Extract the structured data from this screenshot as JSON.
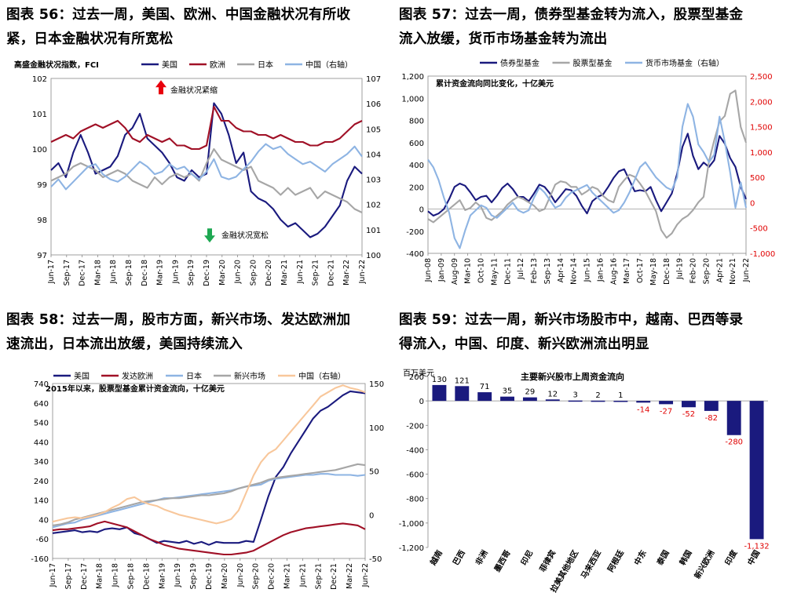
{
  "titles": {
    "t56": [
      "图表 56：过去一周，美国、欧洲、中国金融状况有所收",
      "紧，日本金融状况有所宽松"
    ],
    "t57": [
      "图表 57：过去一周，债券型基金转为流入，股票型基金",
      "流入放缓，货币市场基金转为流出"
    ],
    "t58": [
      "图表 58：过去一周，股市方面，新兴市场、发达欧洲加",
      "速流出，日本流出放缓，美国持续流入"
    ],
    "t59": [
      "图表 59：过去一周，新兴市场股市中，越南、巴西等录",
      "得流入，中国、印度、新兴欧洲流出明显"
    ]
  },
  "colors": {
    "navy": "#1a1a7e",
    "darkred": "#a01026",
    "gray": "#a6a6a6",
    "lightblue": "#8eb4e3",
    "orange": "#f8c79b",
    "red": "#e8000c",
    "green": "#1ea852",
    "bar": "#1a1a7e",
    "neg_label": "#e00000"
  },
  "x_ticks": {
    "c56": [
      "Jun-17",
      "Sep-17",
      "Dec-17",
      "Mar-18",
      "Jun-18",
      "Sep-18",
      "Dec-18",
      "Mar-19",
      "Jun-19",
      "Sep-19",
      "Dec-19",
      "Mar-20",
      "Jun-20",
      "Sep-20",
      "Dec-20",
      "Mar-21",
      "Jun-21",
      "Sep-21",
      "Dec-21",
      "Mar-22",
      "Jun-22"
    ],
    "c57": [
      "Jun-08",
      "Jan-09",
      "Aug-09",
      "Mar-10",
      "Oct-10",
      "May-11",
      "Dec-11",
      "Jul-12",
      "Feb-13",
      "Sep-13",
      "Apr-14",
      "Nov-14",
      "Jun-15",
      "Jan-16",
      "Aug-16",
      "Mar-17",
      "Oct-17",
      "May-18",
      "Dec-18",
      "Jul-19",
      "Feb-20",
      "Sep-20",
      "Apr-21",
      "Nov-21",
      "Jun-22"
    ],
    "c58": [
      "Jun-17",
      "Sep-17",
      "Dec-17",
      "Mar-18",
      "Jun-18",
      "Sep-18",
      "Dec-18",
      "Mar-19",
      "Jun-19",
      "Sep-19",
      "Dec-19",
      "Mar-20",
      "Jun-20",
      "Sep-20",
      "Dec-20",
      "Mar-21",
      "Jun-21",
      "Sep-21",
      "Dec-21",
      "Mar-22",
      "Jun-22"
    ]
  },
  "chart_data": [
    {
      "id": "c56",
      "type": "line",
      "subtitle": "高盛金融状况指数，FCI",
      "legend": [
        "美国",
        "欧洲",
        "日本",
        "中国（右轴）"
      ],
      "ylim": [
        97,
        102
      ],
      "y_ticks": [
        "97",
        "98",
        "99",
        "100",
        "101",
        "102"
      ],
      "y2lim": [
        100,
        107
      ],
      "y2_ticks": [
        "100",
        "101",
        "102",
        "103",
        "104",
        "105",
        "106",
        "107"
      ],
      "annotations": {
        "tight": "金融状况紧缩",
        "loose": "金融状况宽松"
      },
      "series": [
        {
          "name": "美国",
          "color": "navy",
          "values": [
            99.4,
            99.6,
            99.2,
            99.9,
            100.4,
            99.9,
            99.3,
            99.4,
            99.5,
            99.8,
            100.4,
            100.6,
            101.0,
            100.3,
            100.1,
            99.9,
            99.6,
            99.2,
            99.1,
            99.4,
            99.2,
            99.3,
            101.3,
            101.0,
            100.4,
            99.6,
            99.9,
            98.8,
            98.6,
            98.5,
            98.3,
            98.0,
            97.8,
            97.9,
            97.7,
            97.5,
            97.6,
            97.8,
            98.1,
            98.4,
            99.1,
            99.5,
            99.3
          ]
        },
        {
          "name": "欧洲",
          "color": "darkred",
          "values": [
            100.2,
            100.3,
            100.4,
            100.3,
            100.5,
            100.6,
            100.7,
            100.6,
            100.7,
            100.8,
            100.6,
            100.3,
            100.2,
            100.4,
            100.3,
            100.2,
            100.3,
            100.1,
            100.1,
            100.0,
            100.0,
            100.1,
            101.2,
            100.8,
            100.8,
            100.6,
            100.5,
            100.5,
            100.4,
            100.4,
            100.3,
            100.4,
            100.3,
            100.2,
            100.2,
            100.1,
            100.1,
            100.2,
            100.2,
            100.3,
            100.5,
            100.7,
            100.8
          ]
        },
        {
          "name": "日本",
          "color": "gray",
          "values": [
            99.1,
            99.2,
            99.3,
            99.5,
            99.6,
            99.5,
            99.4,
            99.2,
            99.3,
            99.4,
            99.3,
            99.1,
            99.0,
            98.9,
            99.2,
            99.0,
            99.2,
            99.3,
            99.2,
            99.3,
            99.1,
            99.6,
            100.0,
            99.7,
            99.6,
            99.5,
            99.4,
            99.5,
            99.1,
            99.0,
            98.9,
            98.7,
            98.9,
            98.7,
            98.8,
            98.9,
            98.6,
            98.8,
            98.7,
            98.6,
            98.5,
            98.3,
            98.2
          ]
        },
        {
          "name": "中国（右轴）",
          "color": "lightblue",
          "axis": "right",
          "values": [
            102.7,
            103.0,
            102.6,
            102.9,
            103.2,
            103.5,
            103.6,
            103.2,
            103.0,
            102.9,
            103.1,
            103.4,
            103.7,
            103.5,
            103.2,
            103.3,
            103.6,
            103.4,
            103.5,
            103.2,
            103.0,
            103.3,
            103.8,
            103.1,
            103.0,
            103.1,
            103.4,
            103.7,
            104.1,
            104.4,
            104.2,
            104.3,
            104.0,
            103.8,
            103.6,
            103.7,
            103.5,
            103.3,
            103.6,
            103.8,
            104.0,
            104.3,
            103.9
          ]
        }
      ]
    },
    {
      "id": "c57",
      "type": "line",
      "subtitle": "累计资金流向同比变化，十亿美元",
      "legend": [
        "债券型基金",
        "股票型基金",
        "货币市场基金（右轴）"
      ],
      "ylim": [
        -400,
        1200
      ],
      "y_ticks": [
        "-400",
        "-200",
        "0",
        "200",
        "400",
        "600",
        "800",
        "1,000",
        "1,200"
      ],
      "y2lim": [
        -1000,
        2500
      ],
      "y2_ticks": [
        "-1,000",
        "-500",
        "0",
        "500",
        "1,000",
        "1,500",
        "2,000",
        "2,500"
      ],
      "series": [
        {
          "name": "债券型基金",
          "color": "navy",
          "values": [
            -20,
            -60,
            -40,
            0,
            90,
            200,
            230,
            210,
            150,
            80,
            110,
            120,
            60,
            120,
            190,
            230,
            180,
            110,
            110,
            70,
            140,
            220,
            200,
            140,
            60,
            120,
            180,
            170,
            120,
            30,
            -40,
            70,
            110,
            130,
            200,
            280,
            340,
            360,
            260,
            160,
            170,
            160,
            200,
            80,
            -20,
            60,
            140,
            320,
            560,
            680,
            480,
            360,
            420,
            380,
            440,
            660,
            590,
            460,
            380,
            200,
            90
          ]
        },
        {
          "name": "股票型基金",
          "color": "gray",
          "values": [
            -90,
            -120,
            -80,
            -40,
            0,
            40,
            80,
            -10,
            10,
            60,
            20,
            -80,
            -100,
            -60,
            -20,
            40,
            80,
            110,
            90,
            60,
            30,
            -20,
            0,
            110,
            220,
            250,
            240,
            200,
            200,
            130,
            160,
            200,
            180,
            120,
            80,
            60,
            200,
            260,
            310,
            290,
            230,
            160,
            70,
            -20,
            -190,
            -260,
            -220,
            -140,
            -90,
            -60,
            -10,
            60,
            110,
            430,
            620,
            790,
            840,
            1040,
            1070,
            740,
            600
          ]
        },
        {
          "name": "货币市场基金（右轴）",
          "color": "lightblue",
          "axis": "right",
          "values": [
            850,
            700,
            450,
            100,
            -200,
            -700,
            -900,
            -550,
            -250,
            -150,
            -50,
            -100,
            -250,
            -300,
            -200,
            -100,
            0,
            -150,
            -200,
            -150,
            100,
            300,
            200,
            50,
            -100,
            -50,
            100,
            200,
            250,
            300,
            350,
            200,
            100,
            0,
            -100,
            -200,
            -150,
            0,
            200,
            450,
            700,
            800,
            650,
            500,
            400,
            300,
            250,
            500,
            1500,
            1950,
            1700,
            1150,
            1000,
            800,
            950,
            1700,
            1200,
            600,
            -100,
            400,
            -100
          ]
        }
      ]
    },
    {
      "id": "c58",
      "type": "line",
      "subtitle": "2015年以来，股票型基金累计资金流向，十亿美元",
      "legend": [
        "美国",
        "发达欧洲",
        "日本",
        "新兴市场",
        "中国（右轴）"
      ],
      "ylim": [
        -160,
        740
      ],
      "y_ticks": [
        "-160",
        "-60",
        "40",
        "140",
        "240",
        "340",
        "440",
        "540",
        "640",
        "740"
      ],
      "y2lim": [
        -50,
        150
      ],
      "y2_ticks": [
        "-50",
        "0",
        "50",
        "100",
        "150"
      ],
      "series": [
        {
          "name": "美国",
          "color": "navy",
          "values": [
            -30,
            -25,
            -20,
            -15,
            -25,
            -20,
            -25,
            -10,
            -5,
            -10,
            0,
            -30,
            -40,
            -60,
            -80,
            -70,
            -75,
            -80,
            -70,
            -85,
            -75,
            -90,
            -75,
            -80,
            -80,
            -80,
            -70,
            -75,
            40,
            160,
            260,
            310,
            380,
            440,
            500,
            560,
            600,
            620,
            650,
            680,
            700,
            695,
            690
          ]
        },
        {
          "name": "发达欧洲",
          "color": "darkred",
          "values": [
            -15,
            -10,
            -10,
            -5,
            0,
            5,
            20,
            30,
            20,
            10,
            0,
            -20,
            -40,
            -60,
            -75,
            -90,
            -100,
            -110,
            -115,
            -120,
            -125,
            -130,
            -135,
            -140,
            -140,
            -135,
            -130,
            -120,
            -100,
            -80,
            -60,
            -40,
            -25,
            -15,
            -5,
            0,
            5,
            10,
            15,
            20,
            15,
            10,
            -10
          ]
        },
        {
          "name": "日本",
          "color": "lightblue",
          "values": [
            0,
            10,
            20,
            25,
            40,
            50,
            60,
            70,
            80,
            90,
            100,
            110,
            120,
            130,
            140,
            150,
            150,
            155,
            160,
            165,
            170,
            175,
            180,
            185,
            190,
            200,
            210,
            215,
            220,
            240,
            250,
            255,
            260,
            265,
            270,
            270,
            275,
            275,
            270,
            270,
            270,
            265,
            270
          ]
        },
        {
          "name": "新兴市场",
          "color": "gray",
          "values": [
            10,
            15,
            25,
            40,
            50,
            60,
            70,
            80,
            90,
            100,
            110,
            120,
            130,
            135,
            140,
            145,
            150,
            150,
            155,
            160,
            165,
            165,
            170,
            175,
            185,
            200,
            210,
            220,
            230,
            245,
            255,
            260,
            265,
            270,
            275,
            280,
            285,
            290,
            295,
            305,
            315,
            325,
            320
          ]
        },
        {
          "name": "中国（右轴）",
          "color": "orange",
          "axis": "right",
          "values": [
            -8,
            -6,
            -4,
            -3,
            -4,
            -2,
            0,
            3,
            8,
            12,
            18,
            20,
            15,
            12,
            10,
            6,
            3,
            0,
            -2,
            -4,
            -6,
            -8,
            -10,
            -8,
            -5,
            5,
            25,
            45,
            60,
            70,
            75,
            85,
            95,
            105,
            115,
            125,
            135,
            140,
            145,
            148,
            145,
            143,
            140
          ]
        }
      ]
    },
    {
      "id": "c59",
      "type": "bar",
      "title": "主要新兴股市上周资金流向",
      "ylabel": "百万美元",
      "ylim": [
        -1200,
        200
      ],
      "y_ticks": [
        "200",
        "0",
        "-200",
        "-400",
        "-600",
        "-800",
        "-1,000",
        "-1,200"
      ],
      "categories": [
        "越南",
        "巴西",
        "非洲",
        "墨西哥",
        "印尼",
        "菲律宾",
        "拉美其他地区",
        "马来西亚",
        "阿根廷",
        "中东",
        "泰国",
        "韩国",
        "新兴欧洲",
        "印度",
        "中国"
      ],
      "values": [
        130,
        121,
        71,
        35,
        29,
        12,
        3,
        2,
        1,
        -14,
        -27,
        -52,
        -82,
        -280,
        -1132
      ],
      "value_labels": [
        "130",
        "121",
        "71",
        "35",
        "29",
        "12",
        "3",
        "2",
        "1",
        "-14",
        "-27",
        "-52",
        "-82",
        "-280",
        "-1,132"
      ]
    }
  ]
}
